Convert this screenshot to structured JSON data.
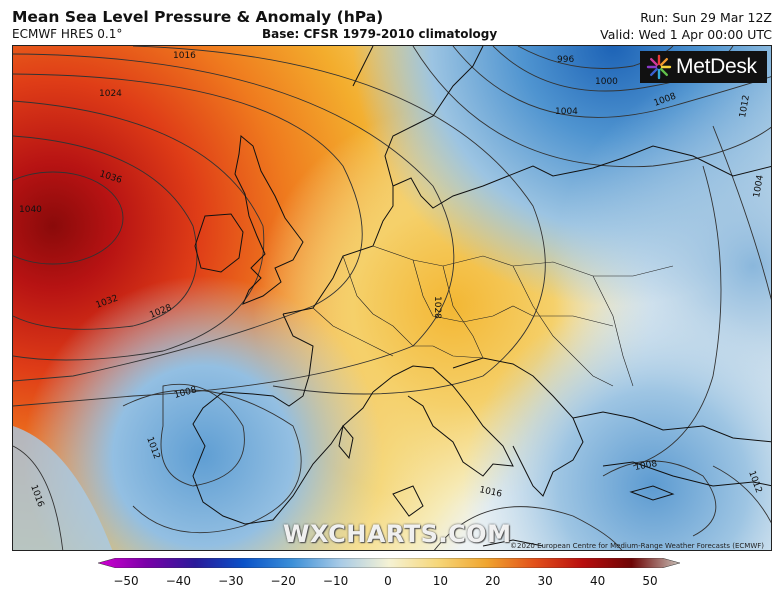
{
  "header": {
    "title": "Mean Sea Level Pressure & Anomaly (hPa)",
    "subtitle": "ECMWF HRES 0.1°",
    "base": "Base: CFSR 1979-2010 climatology",
    "run": "Run: Sun 29 Mar 12Z",
    "valid": "Valid: Wed 1 Apr 00:00 UTC"
  },
  "logo": {
    "name": "MetDesk",
    "icon": "metdesk-burst-icon"
  },
  "watermark": "WXCHARTS.COM",
  "copyright": "©2020 European Centre for Medium-Range Weather Forecasts (ECMWF)",
  "isobar_labels": [
    "1016",
    "1024",
    "1036",
    "1040",
    "1032",
    "1028",
    "1028",
    "996",
    "1000",
    "1004",
    "1008",
    "1012",
    "1004",
    "1008",
    "1012",
    "1016",
    "1016",
    "1008",
    "1012"
  ],
  "colorbar": {
    "ticks": [
      "−50",
      "−40",
      "−30",
      "−20",
      "−10",
      "0",
      "10",
      "20",
      "30",
      "40",
      "50"
    ],
    "colors": [
      "#d200d2",
      "#7a00a8",
      "#2a1a9a",
      "#0a52c8",
      "#3b8fd8",
      "#a9cbe6",
      "#f5f2d4",
      "#f6d77a",
      "#f0a52e",
      "#e2501a",
      "#b80e0e",
      "#6e0505",
      "#c8c0b8"
    ]
  }
}
